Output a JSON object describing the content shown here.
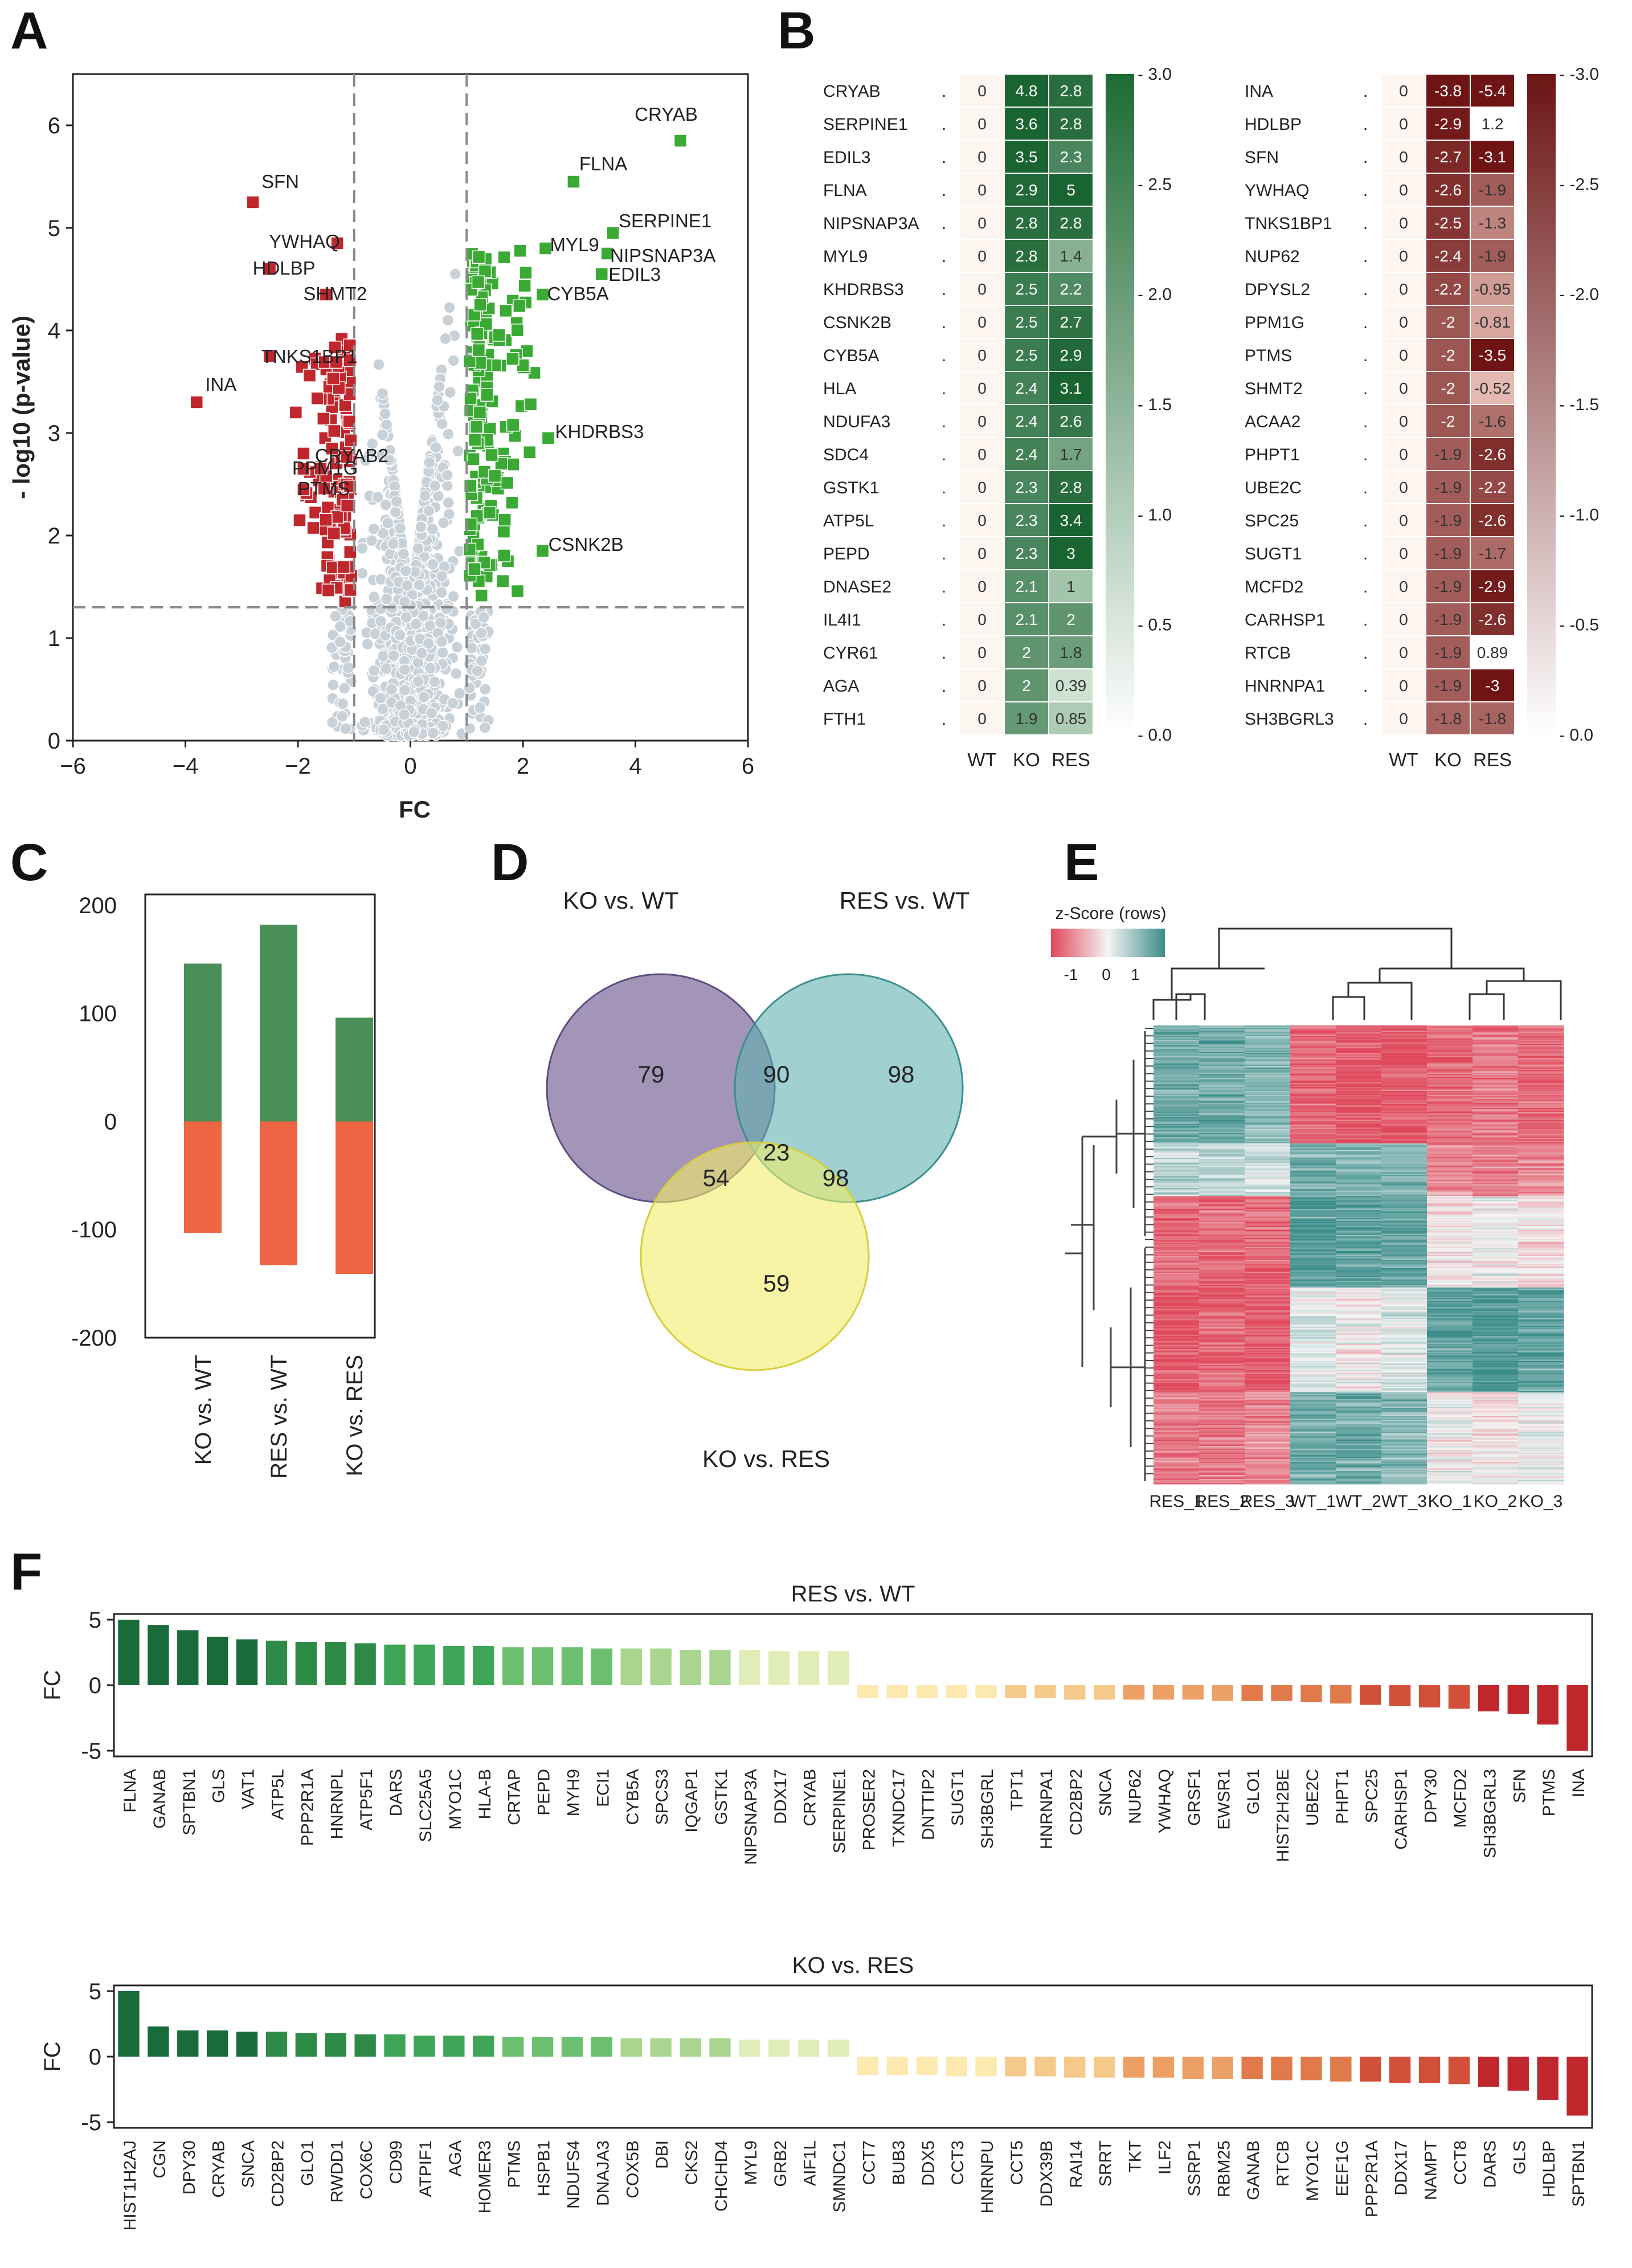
{
  "panel_letters": [
    "A",
    "B",
    "C",
    "D",
    "E",
    "F"
  ],
  "chart_data": [
    {
      "panel": "A",
      "type": "scatter",
      "title": "",
      "xlabel": "FC",
      "ylabel": "- log10 (p-value)",
      "xlim": [
        -6,
        6
      ],
      "ylim": [
        0,
        6.5
      ],
      "xticks": [
        "−6",
        "−4",
        "−2",
        "0",
        "2",
        "4",
        "6"
      ],
      "yticks": [
        "0",
        "1",
        "2",
        "3",
        "4",
        "5",
        "6"
      ],
      "thresholds": {
        "fc": [
          -1,
          1
        ],
        "p": 1.3
      },
      "colors": {
        "down": "#c0272d",
        "up": "#3aaa35",
        "ns": "#c9d1d8"
      },
      "labeled_points": [
        {
          "label": "CRYAB",
          "x": 4.8,
          "y": 5.85
        },
        {
          "label": "FLNA",
          "x": 2.9,
          "y": 5.45
        },
        {
          "label": "SERPINE1",
          "x": 3.6,
          "y": 4.95
        },
        {
          "label": "NIPSNAP3A",
          "x": 3.5,
          "y": 4.75
        },
        {
          "label": "MYL9",
          "x": 2.4,
          "y": 4.8
        },
        {
          "label": "EDIL3",
          "x": 3.4,
          "y": 4.55
        },
        {
          "label": "CYB5A",
          "x": 2.35,
          "y": 4.35
        },
        {
          "label": "KHDRBS3",
          "x": 2.45,
          "y": 2.95
        },
        {
          "label": "CSNK2B",
          "x": 2.35,
          "y": 1.85
        },
        {
          "label": "SFN",
          "x": -2.8,
          "y": 5.25
        },
        {
          "label": "YWHAQ",
          "x": -1.3,
          "y": 4.85
        },
        {
          "label": "HDLBP",
          "x": -2.5,
          "y": 4.6
        },
        {
          "label": "SHMT2",
          "x": -1.5,
          "y": 4.35
        },
        {
          "label": "TNKS1BP1",
          "x": -2.5,
          "y": 3.75
        },
        {
          "label": "INA",
          "x": -3.8,
          "y": 3.3
        },
        {
          "label": "CRYAB2",
          "x": -1.9,
          "y": 2.8
        },
        {
          "label": "PPM1G",
          "x": -1.9,
          "y": 2.65
        },
        {
          "label": "PTMS",
          "x": -1.9,
          "y": 2.45
        }
      ]
    },
    {
      "panel": "B",
      "type": "heatmap",
      "columns": [
        "WT",
        "KO",
        "RES"
      ],
      "rows": [
        {
          "gene": "CRYAB",
          "values": [
            0,
            4.8,
            2.8
          ],
          "labels": [
            "0",
            "4.8",
            "2.8"
          ]
        },
        {
          "gene": "SERPINE1",
          "values": [
            0,
            3.6,
            2.8
          ],
          "labels": [
            "0",
            "3.6",
            "2.8"
          ]
        },
        {
          "gene": "EDIL3",
          "values": [
            0,
            3.5,
            2.3
          ],
          "labels": [
            "0",
            "3.5",
            "2.3"
          ]
        },
        {
          "gene": "FLNA",
          "values": [
            0,
            2.9,
            5
          ],
          "labels": [
            "0",
            "2.9",
            "5"
          ]
        },
        {
          "gene": "NIPSNAP3A",
          "values": [
            0,
            2.8,
            2.8
          ],
          "labels": [
            "0",
            "2.8",
            "2.8"
          ]
        },
        {
          "gene": "MYL9",
          "values": [
            0,
            2.8,
            1.4
          ],
          "labels": [
            "0",
            "2.8",
            "1.4"
          ]
        },
        {
          "gene": "KHDRBS3",
          "values": [
            0,
            2.5,
            2.2
          ],
          "labels": [
            "0",
            "2.5",
            "2.2"
          ]
        },
        {
          "gene": "CSNK2B",
          "values": [
            0,
            2.5,
            2.7
          ],
          "labels": [
            "0",
            "2.5",
            "2.7"
          ]
        },
        {
          "gene": "CYB5A",
          "values": [
            0,
            2.5,
            2.9
          ],
          "labels": [
            "0",
            "2.5",
            "2.9"
          ]
        },
        {
          "gene": "HLA",
          "values": [
            0,
            2.4,
            3.1
          ],
          "labels": [
            "0",
            "2.4",
            "3.1"
          ]
        },
        {
          "gene": "NDUFA3",
          "values": [
            0,
            2.4,
            2.6
          ],
          "labels": [
            "0",
            "2.4",
            "2.6"
          ]
        },
        {
          "gene": "SDC4",
          "values": [
            0,
            2.4,
            1.7
          ],
          "labels": [
            "0",
            "2.4",
            "1.7"
          ]
        },
        {
          "gene": "GSTK1",
          "values": [
            0,
            2.3,
            2.8
          ],
          "labels": [
            "0",
            "2.3",
            "2.8"
          ]
        },
        {
          "gene": "ATP5L",
          "values": [
            0,
            2.3,
            3.4
          ],
          "labels": [
            "0",
            "2.3",
            "3.4"
          ]
        },
        {
          "gene": "PEPD",
          "values": [
            0,
            2.3,
            3
          ],
          "labels": [
            "0",
            "2.3",
            "3"
          ]
        },
        {
          "gene": "DNASE2",
          "values": [
            0,
            2.1,
            1
          ],
          "labels": [
            "0",
            "2.1",
            "1"
          ]
        },
        {
          "gene": "IL4I1",
          "values": [
            0,
            2.1,
            2
          ],
          "labels": [
            "0",
            "2.1",
            "2"
          ]
        },
        {
          "gene": "CYR61",
          "values": [
            0,
            2,
            1.8
          ],
          "labels": [
            "0",
            "2",
            "1.8"
          ]
        },
        {
          "gene": "AGA",
          "values": [
            0,
            2,
            0.39
          ],
          "labels": [
            "0",
            "2",
            "0.39"
          ]
        },
        {
          "gene": "FTH1",
          "values": [
            0,
            1.9,
            0.85
          ],
          "labels": [
            "0",
            "1.9",
            "0.85"
          ]
        }
      ],
      "colorbar": {
        "min": 0,
        "max": 3,
        "ticks": [
          "- 0.0",
          "- 0.5",
          "- 1.0",
          "- 1.5",
          "- 2.0",
          "- 2.5",
          "- 3.0"
        ],
        "color": "#1e6b34"
      }
    },
    {
      "panel": "B",
      "type": "heatmap",
      "columns": [
        "WT",
        "KO",
        "RES"
      ],
      "rows": [
        {
          "gene": "INA",
          "values": [
            0,
            -3.8,
            -5.4
          ],
          "labels": [
            "0",
            "-3.8",
            "-5.4"
          ]
        },
        {
          "gene": "HDLBP",
          "values": [
            0,
            -2.9,
            1.2
          ],
          "labels": [
            "0",
            "-2.9",
            "1.2"
          ]
        },
        {
          "gene": "SFN",
          "values": [
            0,
            -2.7,
            -3.1
          ],
          "labels": [
            "0",
            "-2.7",
            "-3.1"
          ]
        },
        {
          "gene": "YWHAQ",
          "values": [
            0,
            -2.6,
            -1.9
          ],
          "labels": [
            "0",
            "-2.6",
            "-1.9"
          ]
        },
        {
          "gene": "TNKS1BP1",
          "values": [
            0,
            -2.5,
            -1.3
          ],
          "labels": [
            "0",
            "-2.5",
            "-1.3"
          ]
        },
        {
          "gene": "NUP62",
          "values": [
            0,
            -2.4,
            -1.9
          ],
          "labels": [
            "0",
            "-2.4",
            "-1.9"
          ]
        },
        {
          "gene": "DPYSL2",
          "values": [
            0,
            -2.2,
            -0.95
          ],
          "labels": [
            "0",
            "-2.2",
            "-0.95"
          ]
        },
        {
          "gene": "PPM1G",
          "values": [
            0,
            -2,
            -0.81
          ],
          "labels": [
            "0",
            "-2",
            "-0.81"
          ]
        },
        {
          "gene": "PTMS",
          "values": [
            0,
            -2,
            -3.5
          ],
          "labels": [
            "0",
            "-2",
            "-3.5"
          ]
        },
        {
          "gene": "SHMT2",
          "values": [
            0,
            -2,
            -0.52
          ],
          "labels": [
            "0",
            "-2",
            "-0.52"
          ]
        },
        {
          "gene": "ACAA2",
          "values": [
            0,
            -2,
            -1.6
          ],
          "labels": [
            "0",
            "-2",
            "-1.6"
          ]
        },
        {
          "gene": "PHPT1",
          "values": [
            0,
            -1.9,
            -2.6
          ],
          "labels": [
            "0",
            "-1.9",
            "-2.6"
          ]
        },
        {
          "gene": "UBE2C",
          "values": [
            0,
            -1.9,
            -2.2
          ],
          "labels": [
            "0",
            "-1.9",
            "-2.2"
          ]
        },
        {
          "gene": "SPC25",
          "values": [
            0,
            -1.9,
            -2.6
          ],
          "labels": [
            "0",
            "-1.9",
            "-2.6"
          ]
        },
        {
          "gene": "SUGT1",
          "values": [
            0,
            -1.9,
            -1.7
          ],
          "labels": [
            "0",
            "-1.9",
            "-1.7"
          ]
        },
        {
          "gene": "MCFD2",
          "values": [
            0,
            -1.9,
            -2.9
          ],
          "labels": [
            "0",
            "-1.9",
            "-2.9"
          ]
        },
        {
          "gene": "CARHSP1",
          "values": [
            0,
            -1.9,
            -2.6
          ],
          "labels": [
            "0",
            "-1.9",
            "-2.6"
          ]
        },
        {
          "gene": "RTCB",
          "values": [
            0,
            -1.9,
            0.89
          ],
          "labels": [
            "0",
            "-1.9",
            "0.89"
          ]
        },
        {
          "gene": "HNRNPA1",
          "values": [
            0,
            -1.9,
            -3
          ],
          "labels": [
            "0",
            "-1.9",
            "-3"
          ]
        },
        {
          "gene": "SH3BGRL3",
          "values": [
            0,
            -1.8,
            -1.8
          ],
          "labels": [
            "0",
            "-1.8",
            "-1.8"
          ]
        }
      ],
      "colorbar": {
        "min": 0,
        "max": -3,
        "ticks": [
          "- 0.0",
          "- -0.5",
          "- -1.0",
          "- -1.5",
          "- -2.0",
          "- -2.5",
          "- -3.0"
        ],
        "color": "#6b1414"
      }
    },
    {
      "panel": "C",
      "type": "bar",
      "categories": [
        "KO vs. WT",
        "RES vs. WT",
        "KO vs. RES"
      ],
      "series": [
        {
          "name": "up",
          "values": [
            146,
            182,
            96
          ],
          "color": "#4a8f57"
        },
        {
          "name": "down",
          "values": [
            -103,
            -133,
            -141
          ],
          "color": "#ef6442"
        }
      ],
      "ylim": [
        -200,
        210
      ],
      "yticks": [
        200,
        100,
        0,
        -100,
        -200
      ],
      "ytick_labels": [
        "200",
        "100",
        "0",
        "-100",
        "-200"
      ]
    },
    {
      "panel": "D",
      "type": "venn",
      "sets": [
        "KO vs. WT",
        "RES vs. WT",
        "KO vs. RES"
      ],
      "regions": {
        "ko_wt_only": 79,
        "ko_wt_res_wt": 90,
        "res_wt_only": 98,
        "ko_wt_ko_res": 54,
        "all_three": 23,
        "res_wt_ko_res": 98,
        "ko_res_only": 59
      },
      "colors": [
        "#7a6898",
        "#63b0b0",
        "#f2ec6a"
      ]
    },
    {
      "panel": "E",
      "type": "heatmap",
      "title": "z-Score (rows)",
      "scale_ticks": [
        "-1",
        "0",
        "1"
      ],
      "columns": [
        "RES_1",
        "RES_2",
        "RES_3",
        "WT_1",
        "WT_2",
        "WT_3",
        "KO_1",
        "KO_2",
        "KO_3"
      ],
      "row_clusters": [
        {
          "rows": 90,
          "values": [
            0.7,
            0.7,
            0.6,
            -0.8,
            -0.9,
            -0.9,
            -0.8,
            -0.7,
            -0.8
          ]
        },
        {
          "rows": 40,
          "values": [
            0.3,
            0.3,
            0.2,
            0.7,
            0.6,
            0.6,
            -0.6,
            -0.7,
            -0.6
          ]
        },
        {
          "rows": 70,
          "values": [
            -0.8,
            -0.8,
            -0.8,
            0.9,
            0.8,
            0.8,
            -0.1,
            0.0,
            -0.1
          ]
        },
        {
          "rows": 80,
          "values": [
            -0.9,
            -0.8,
            -0.9,
            0.1,
            0.0,
            0.1,
            0.8,
            0.9,
            0.8
          ]
        },
        {
          "rows": 70,
          "values": [
            -0.7,
            -0.7,
            -0.6,
            0.7,
            0.7,
            0.6,
            0.0,
            -0.1,
            0.0
          ]
        }
      ],
      "colors": {
        "low": "#e0485b",
        "mid": "#f4f4f4",
        "high": "#3b8d8a"
      }
    },
    {
      "panel": "F",
      "type": "bar",
      "title": "RES vs. WT",
      "ylabel": "FC",
      "ylim": [
        -5,
        5
      ],
      "yticks": [
        "5",
        "0",
        "-5"
      ],
      "categories": [
        "FLNA",
        "GANAB",
        "SPTBN1",
        "GLS",
        "VAT1",
        "ATP5L",
        "PPP2R1A",
        "HNRNPL",
        "ATP5F1",
        "DARS",
        "SLC25A5",
        "MYO1C",
        "HLA-B",
        "CRTAP",
        "PEPD",
        "MYH9",
        "ECI1",
        "CYB5A",
        "SPCS3",
        "IQGAP1",
        "GSTK1",
        "NIPSNAP3A",
        "DDX17",
        "CRYAB",
        "SERPINE1",
        "PROSER2",
        "TXNDC17",
        "DNTTIP2",
        "SUGT1",
        "SH3BGRL",
        "TPT1",
        "HNRNPA1",
        "CD2BP2",
        "SNCA",
        "NUP62",
        "YWHAQ",
        "GRSF1",
        "EWSR1",
        "GLO1",
        "HIST2H2BE",
        "UBE2C",
        "PHPT1",
        "SPC25",
        "CARHSP1",
        "DPY30",
        "MCFD2",
        "SH3BGRL3",
        "SFN",
        "PTMS",
        "INA"
      ],
      "values": [
        5.0,
        4.6,
        4.2,
        3.7,
        3.5,
        3.4,
        3.3,
        3.3,
        3.2,
        3.1,
        3.1,
        3.0,
        3.0,
        2.9,
        2.9,
        2.9,
        2.8,
        2.8,
        2.8,
        2.7,
        2.7,
        2.7,
        2.6,
        2.6,
        2.6,
        -1.0,
        -1.0,
        -1.0,
        -1.0,
        -1.0,
        -1.0,
        -1.0,
        -1.1,
        -1.1,
        -1.1,
        -1.1,
        -1.1,
        -1.2,
        -1.2,
        -1.2,
        -1.3,
        -1.4,
        -1.5,
        -1.6,
        -1.7,
        -1.8,
        -2.0,
        -2.2,
        -3.0,
        -5.0
      ]
    },
    {
      "panel": "F",
      "type": "bar",
      "title": "KO vs. RES",
      "ylabel": "FC",
      "ylim": [
        -5,
        5
      ],
      "yticks": [
        "5",
        "0",
        "-5"
      ],
      "categories": [
        "HIST1H2AJ",
        "CGN",
        "DPY30",
        "CRYAB",
        "SNCA",
        "CD2BP2",
        "GLO1",
        "RWDD1",
        "COX6C",
        "CD99",
        "ATPIF1",
        "AGA",
        "HOMER3",
        "PTMS",
        "HSPB1",
        "NDUFS4",
        "DNAJA3",
        "COX5B",
        "DBI",
        "CKS2",
        "CHCHD4",
        "MYL9",
        "GRB2",
        "AIF1L",
        "SMNDC1",
        "CCT7",
        "BUB3",
        "DDX5",
        "CCT3",
        "HNRNPU",
        "CCT5",
        "DDX39B",
        "RAI14",
        "SRRT",
        "TKT",
        "ILF2",
        "SSRP1",
        "RBM25",
        "GANAB",
        "RTCB",
        "MYO1C",
        "EEF1G",
        "PPP2R1A",
        "DDX17",
        "NAMPT",
        "CCT8",
        "DARS",
        "GLS",
        "HDLBP",
        "SPTBN1"
      ],
      "values": [
        5.0,
        2.3,
        2.0,
        2.0,
        1.9,
        1.9,
        1.8,
        1.8,
        1.7,
        1.7,
        1.6,
        1.6,
        1.6,
        1.5,
        1.5,
        1.5,
        1.5,
        1.4,
        1.4,
        1.4,
        1.4,
        1.3,
        1.3,
        1.3,
        1.3,
        -1.4,
        -1.4,
        -1.4,
        -1.5,
        -1.5,
        -1.5,
        -1.5,
        -1.6,
        -1.6,
        -1.6,
        -1.6,
        -1.7,
        -1.7,
        -1.7,
        -1.8,
        -1.8,
        -1.9,
        -1.9,
        -2.0,
        -2.0,
        -2.1,
        -2.3,
        -2.6,
        -3.3,
        -4.5
      ]
    }
  ]
}
